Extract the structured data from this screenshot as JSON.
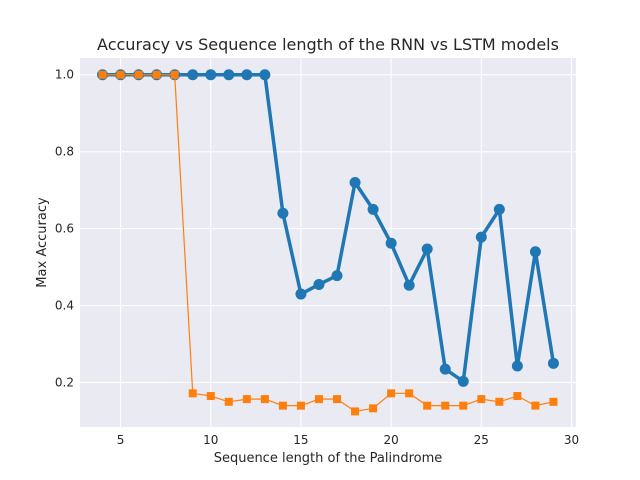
{
  "chart_data": {
    "type": "line",
    "title": "Accuracy vs Sequence length of the RNN vs LSTM models",
    "xlabel": "Sequence length of the Palindrome",
    "ylabel": "Max Accuracy",
    "xlim": [
      2.75,
      30.25
    ],
    "ylim": [
      0.0845,
      1.0435
    ],
    "xticks": [
      5,
      10,
      15,
      20,
      25,
      30
    ],
    "yticks": [
      0.2,
      0.4,
      0.6,
      0.8,
      1.0
    ],
    "ytick_labels": [
      "0.2",
      "0.4",
      "0.6",
      "0.8",
      "1.0"
    ],
    "grid": true,
    "legend": "none",
    "x": [
      4,
      5,
      6,
      7,
      8,
      9,
      10,
      11,
      12,
      13,
      14,
      15,
      16,
      17,
      18,
      19,
      20,
      21,
      22,
      23,
      24,
      25,
      26,
      27,
      28,
      29
    ],
    "series": [
      {
        "color": "#1f77b4",
        "marker": "circle",
        "values": [
          1.0,
          1.0,
          1.0,
          1.0,
          1.0,
          1.0,
          1.0,
          1.0,
          1.0,
          1.0,
          0.64,
          0.43,
          0.455,
          0.478,
          0.72,
          0.65,
          0.562,
          0.453,
          0.547,
          0.235,
          0.203,
          0.578,
          0.65,
          0.243,
          0.54,
          0.25
        ]
      },
      {
        "color": "#ff7f0e",
        "marker": "square",
        "values": [
          1.0,
          1.0,
          1.0,
          1.0,
          1.0,
          0.172,
          0.165,
          0.15,
          0.157,
          0.157,
          0.14,
          0.14,
          0.157,
          0.157,
          0.125,
          0.133,
          0.172,
          0.172,
          0.14,
          0.14,
          0.14,
          0.157,
          0.15,
          0.165,
          0.14,
          0.15
        ]
      }
    ]
  }
}
